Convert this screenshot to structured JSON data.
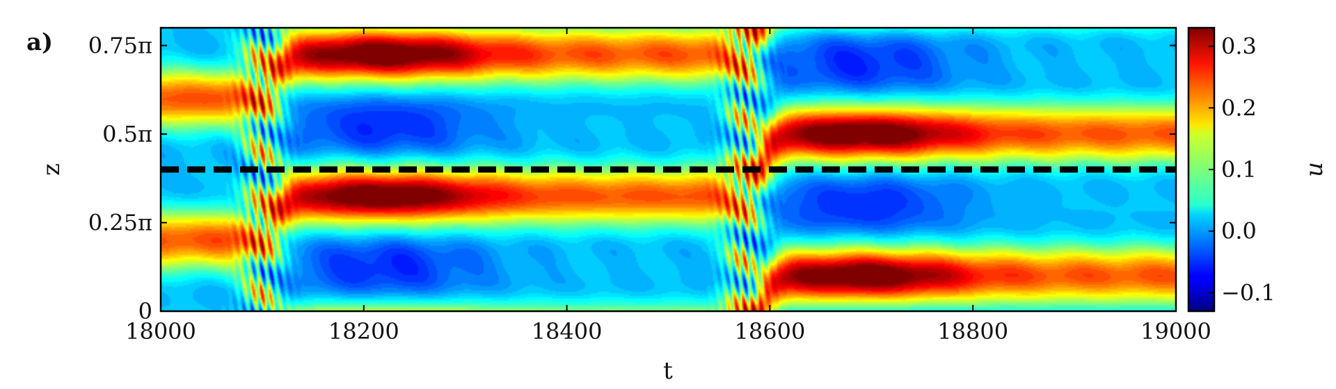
{
  "chart_data": {
    "type": "heatmap",
    "panel_label": "a)",
    "xlabel": "t",
    "ylabel": "z",
    "colorbar_label": "u",
    "xlim": [
      18000,
      19000
    ],
    "ylim_over_pi": [
      0,
      0.8
    ],
    "x_ticks": [
      18000,
      18200,
      18400,
      18600,
      18800,
      19000
    ],
    "x_tick_labels": [
      "18000",
      "18200",
      "18400",
      "18600",
      "18800",
      "19000"
    ],
    "y_ticks_over_pi": [
      0,
      0.25,
      0.5,
      0.75
    ],
    "y_tick_labels": [
      "0",
      "0.25π",
      "0.5π",
      "0.75π"
    ],
    "colorbar_range": [
      -0.13,
      0.33
    ],
    "colorbar_ticks": [
      -0.1,
      0.0,
      0.1,
      0.2,
      0.3
    ],
    "colorbar_tick_labels": [
      "−0.1",
      "0.0",
      "0.1",
      "0.2",
      "0.3"
    ],
    "colormap": "jet",
    "dashed_line_z_over_pi": 0.4,
    "dashed_line_color": "#000000",
    "structure": {
      "period_z_over_pi": 0.4,
      "transition_times": [
        18100,
        18575
      ],
      "low_band_centers_over_pi": [
        {
          "before": 0.0,
          "middle": 0.125,
          "after": 0.3
        }
      ],
      "hot_spots": [
        {
          "t": 18220,
          "z_over_pi": 0.32,
          "u": 0.3
        },
        {
          "t": 18690,
          "z_over_pi": 0.07,
          "u": 0.32
        }
      ]
    }
  }
}
